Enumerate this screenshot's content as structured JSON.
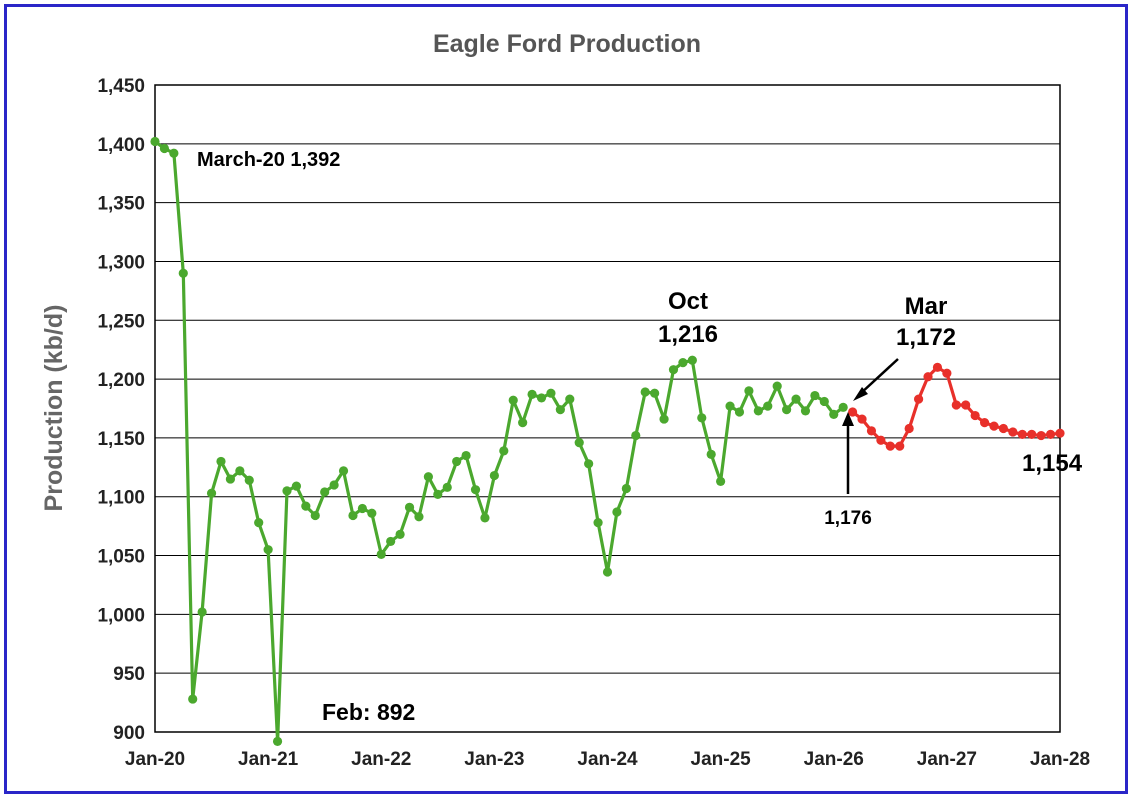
{
  "chart_data": {
    "type": "line",
    "title": "Eagle Ford Production",
    "ylabel": "Production (kb/d)",
    "xlabel": "",
    "ylim": [
      900,
      1450
    ],
    "yticks": [
      "900",
      "950",
      "1,000",
      "1,050",
      "1,100",
      "1,150",
      "1,200",
      "1,250",
      "1,300",
      "1,350",
      "1,400",
      "1,450"
    ],
    "xticks": [
      "Jan-20",
      "Jan-21",
      "Jan-22",
      "Jan-23",
      "Jan-24",
      "Jan-25",
      "Jan-26",
      "Jan-27",
      "Jan-28"
    ],
    "grid": "horizontal",
    "x_start": "2020-01",
    "series": [
      {
        "color": "#4ba82e",
        "values": [
          1402,
          1396,
          1392,
          1290,
          928,
          1002,
          1103,
          1130,
          1115,
          1122,
          1114,
          1078,
          1055,
          892,
          1105,
          1109,
          1092,
          1084,
          1104,
          1110,
          1122,
          1084,
          1090,
          1086,
          1051,
          1062,
          1068,
          1091,
          1083,
          1117,
          1102,
          1108,
          1130,
          1135,
          1106,
          1082,
          1118,
          1139,
          1182,
          1163,
          1187,
          1184,
          1188,
          1174,
          1183,
          1146,
          1128,
          1078,
          1036,
          1087,
          1107,
          1152,
          1189,
          1188,
          1166,
          1208,
          1214,
          1216,
          1167,
          1136,
          1113,
          1177,
          1172,
          1190,
          1173,
          1177,
          1194,
          1174,
          1183,
          1173,
          1186,
          1181,
          1170,
          1176
        ]
      },
      {
        "color": "#e8302a",
        "start_index": 74,
        "values": [
          1172,
          1166,
          1156,
          1148,
          1143,
          1143,
          1158,
          1183,
          1202,
          1210,
          1205,
          1178,
          1178,
          1169,
          1163,
          1160,
          1158,
          1155,
          1153,
          1153,
          1152,
          1153,
          1154
        ]
      }
    ],
    "annotations": [
      {
        "text": "March-20 1,392"
      },
      {
        "text": "Feb: 892"
      },
      {
        "text": "Oct"
      },
      {
        "text": "1,216"
      },
      {
        "text": "Mar"
      },
      {
        "text": "1,172"
      },
      {
        "text": "1,176"
      },
      {
        "text": "1,154"
      }
    ]
  }
}
